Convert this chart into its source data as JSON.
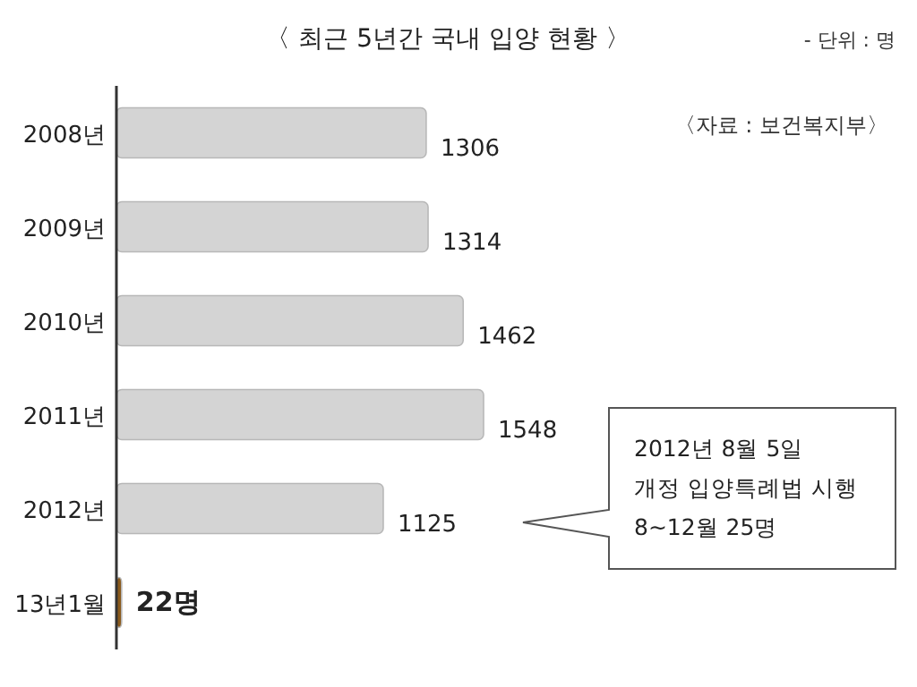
{
  "chart_data": {
    "type": "bar",
    "orientation": "horizontal",
    "title": "〈 최근 5년간 국내 입양 현황 〉",
    "categories": [
      "2008년",
      "2009년",
      "2010년",
      "2011년",
      "2012년",
      "13년1월"
    ],
    "values": [
      1306,
      1314,
      1462,
      1548,
      1125,
      22
    ],
    "colors": [
      "#d4d4d4",
      "#d4d4d4",
      "#d4d4d4",
      "#d4d4d4",
      "#d4d4d4",
      "#8a5a1c"
    ],
    "value_labels": [
      "1306",
      "1314",
      "1462",
      "1548",
      "1125",
      "22명"
    ],
    "annotations": [
      "- 단위 : 명",
      "〈자료 : 보건복지부〉",
      "2012년 8월 5일\n개정 입양특례법 시행\n8~12월 25명"
    ]
  }
}
